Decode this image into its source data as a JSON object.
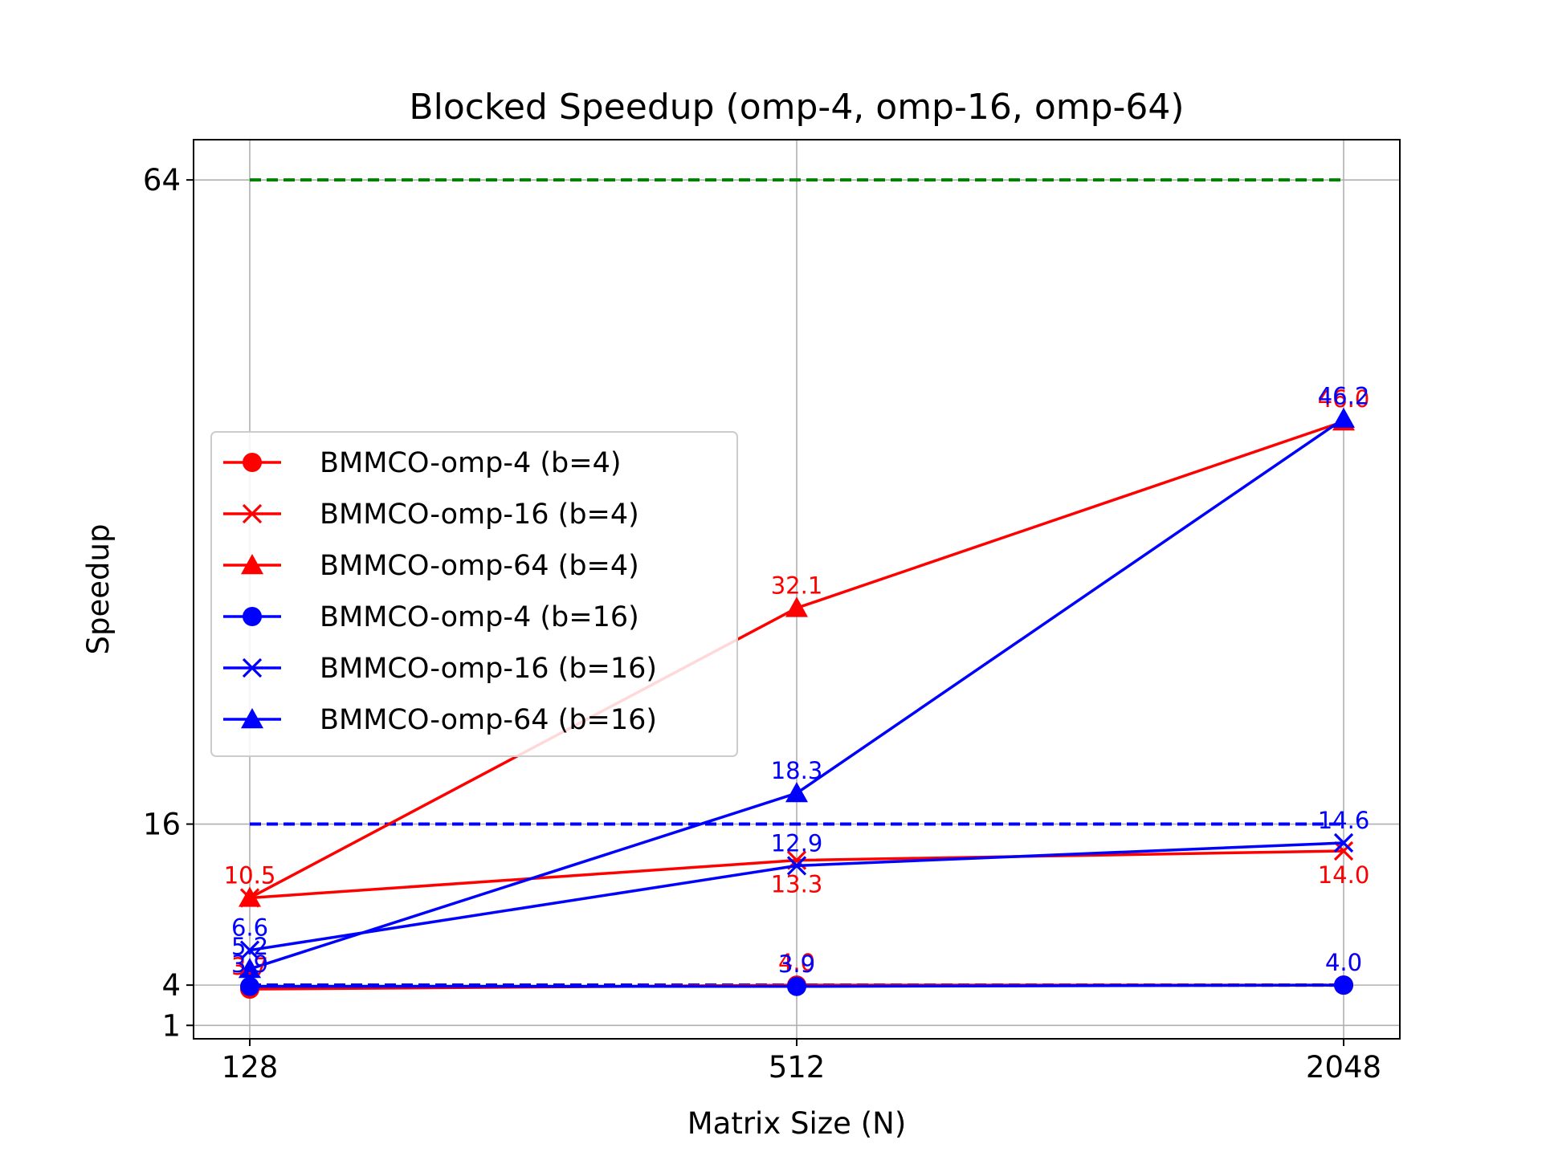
{
  "chart_data": {
    "type": "line",
    "title": "Blocked Speedup (omp-4, omp-16, omp-64)",
    "xlabel": "Matrix Size (N)",
    "ylabel": "Speedup",
    "categories": [
      "128",
      "512",
      "2048"
    ],
    "yticks": [
      {
        "value": 1,
        "label": "1"
      },
      {
        "value": 4,
        "label": "4"
      },
      {
        "value": 16,
        "label": "16"
      },
      {
        "value": 64,
        "label": "64"
      }
    ],
    "ylim": [
      0,
      67
    ],
    "grid": true,
    "legend_position": "center-left",
    "reference_lines": [
      {
        "value": 4,
        "color": "#ff0000",
        "style": "dashed"
      },
      {
        "value": 4,
        "color": "#0000ff",
        "style": "dashed"
      },
      {
        "value": 16,
        "color": "#0000ff",
        "style": "dashed"
      },
      {
        "value": 64,
        "color": "#008000",
        "style": "dashed"
      }
    ],
    "series": [
      {
        "name": "BMMCO-omp-4 (b=4)",
        "color": "#ff0000",
        "marker": "circle",
        "values": [
          3.7,
          4.0,
          4.0
        ],
        "labels": [
          "3.7",
          "4.0",
          "4.0"
        ],
        "label_pos": [
          "above",
          "above",
          "above"
        ]
      },
      {
        "name": "BMMCO-omp-16 (b=4)",
        "color": "#ff0000",
        "marker": "x",
        "values": [
          10.5,
          13.3,
          14.0
        ],
        "labels": [
          "10.5",
          "13.3",
          "14.0"
        ],
        "label_pos": [
          "above",
          "below",
          "below"
        ]
      },
      {
        "name": "BMMCO-omp-64 (b=4)",
        "color": "#ff0000",
        "marker": "triangle",
        "values": [
          10.5,
          32.1,
          46.0
        ],
        "labels": [
          "10.5",
          "32.1",
          "46.0"
        ],
        "label_pos": [
          "above",
          "above",
          "above"
        ]
      },
      {
        "name": "BMMCO-omp-4 (b=16)",
        "color": "#0000ff",
        "marker": "circle",
        "values": [
          3.9,
          3.9,
          4.0
        ],
        "labels": [
          "3.9",
          "3.9",
          "4.0"
        ],
        "label_pos": [
          "above",
          "above",
          "above"
        ]
      },
      {
        "name": "BMMCO-omp-16 (b=16)",
        "color": "#0000ff",
        "marker": "x",
        "values": [
          6.6,
          12.9,
          14.6
        ],
        "labels": [
          "6.6",
          "12.9",
          "14.6"
        ],
        "label_pos": [
          "above",
          "above",
          "above"
        ]
      },
      {
        "name": "BMMCO-omp-64 (b=16)",
        "color": "#0000ff",
        "marker": "triangle",
        "values": [
          5.2,
          18.3,
          46.2
        ],
        "labels": [
          "5.2",
          "18.3",
          "46.2"
        ],
        "label_pos": [
          "above",
          "above",
          "above"
        ]
      }
    ]
  }
}
